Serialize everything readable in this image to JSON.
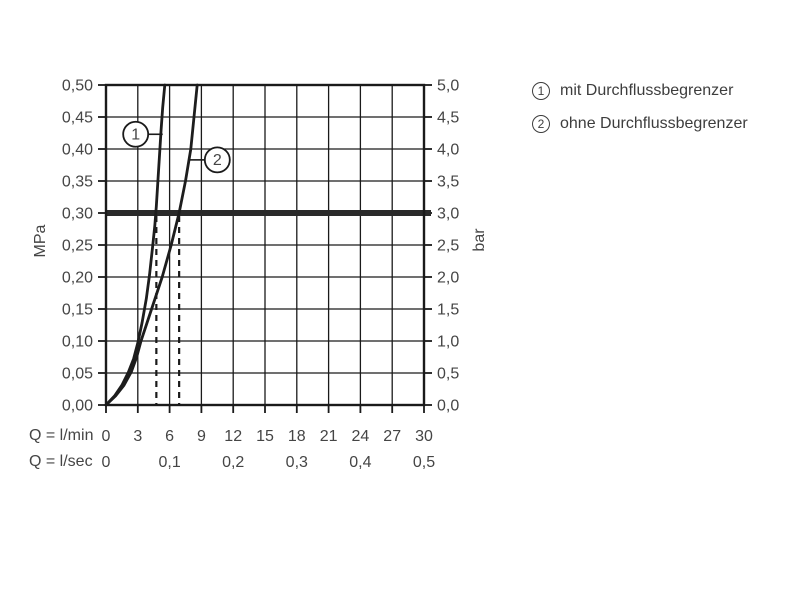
{
  "colors": {
    "ink": "#1a1a1a",
    "curve": "#1d1d1d",
    "reference": "#2a2a2a",
    "text": "#454545",
    "background": "#ffffff"
  },
  "legend": {
    "items": [
      {
        "symbol": "1",
        "label": "mit Durchflussbegrenzer"
      },
      {
        "symbol": "2",
        "label": "ohne Durchflussbegrenzer"
      }
    ]
  },
  "chart_data": {
    "type": "line",
    "title": "",
    "grid": "on",
    "x_axis": {
      "label_lmin": "Q = l/min",
      "label_lsec": "Q = l/sec",
      "min": 0,
      "max": 30,
      "tick_step": 3,
      "tick_labels_lmin": [
        "0",
        "3",
        "6",
        "9",
        "12",
        "15",
        "18",
        "21",
        "24",
        "27",
        "30"
      ],
      "tick_labels_lsec": [
        {
          "label": "0",
          "q": 0
        },
        {
          "label": "0,1",
          "q": 6
        },
        {
          "label": "0,2",
          "q": 12
        },
        {
          "label": "0,3",
          "q": 18
        },
        {
          "label": "0,4",
          "q": 24
        },
        {
          "label": "0,5",
          "q": 30
        }
      ]
    },
    "y_axis_left": {
      "label": "MPa",
      "min": 0,
      "max": 0.5,
      "tick_step": 0.05,
      "tick_labels_top_to_bottom": [
        "0,50",
        "0,45",
        "0,40",
        "0,35",
        "0,30",
        "0,25",
        "0,20",
        "0,15",
        "0,10",
        "0,05",
        "0,00"
      ]
    },
    "y_axis_right": {
      "label": "bar",
      "min": 0,
      "max": 5,
      "tick_step": 0.5,
      "tick_labels_top_to_bottom": [
        "5,0",
        "4,5",
        "4,0",
        "3,5",
        "3,0",
        "2,5",
        "2,0",
        "1,5",
        "1,0",
        "0,5",
        "0,0"
      ]
    },
    "series": [
      {
        "id": "1",
        "name": "mit Durchflussbegrenzer",
        "points_q_mpa": [
          [
            0,
            0
          ],
          [
            0.8,
            0.014
          ],
          [
            1.5,
            0.031
          ],
          [
            2.1,
            0.051
          ],
          [
            2.6,
            0.072
          ],
          [
            3.0,
            0.097
          ],
          [
            3.4,
            0.128
          ],
          [
            3.8,
            0.166
          ],
          [
            4.1,
            0.203
          ],
          [
            4.4,
            0.247
          ],
          [
            4.6,
            0.28
          ],
          [
            4.75,
            0.31
          ],
          [
            4.9,
            0.35
          ],
          [
            5.05,
            0.39
          ],
          [
            5.2,
            0.43
          ],
          [
            5.35,
            0.465
          ],
          [
            5.55,
            0.5
          ]
        ]
      },
      {
        "id": "2",
        "name": "ohne Durchflussbegrenzer",
        "points_q_mpa": [
          [
            0,
            0
          ],
          [
            0.9,
            0.014
          ],
          [
            1.7,
            0.031
          ],
          [
            2.4,
            0.052
          ],
          [
            2.9,
            0.075
          ],
          [
            3.3,
            0.1
          ],
          [
            4.3,
            0.15
          ],
          [
            5.3,
            0.2
          ],
          [
            6.15,
            0.25
          ],
          [
            6.9,
            0.3
          ],
          [
            7.5,
            0.35
          ],
          [
            8.0,
            0.4
          ],
          [
            8.3,
            0.45
          ],
          [
            8.6,
            0.5
          ]
        ]
      }
    ],
    "reference_line_mpa": 0.3,
    "reference_line_bar": 3.0,
    "dashed_guides": [
      {
        "q": 4.75,
        "to_mpa": 0.3
      },
      {
        "q": 6.9,
        "to_mpa": 0.3
      }
    ],
    "annotations": [
      {
        "symbol": "1",
        "center_q": 2.8,
        "center_mpa": 0.423,
        "connect_q": 5.35
      },
      {
        "symbol": "2",
        "center_q": 10.5,
        "center_mpa": 0.383,
        "connect_q": 7.85
      }
    ]
  }
}
